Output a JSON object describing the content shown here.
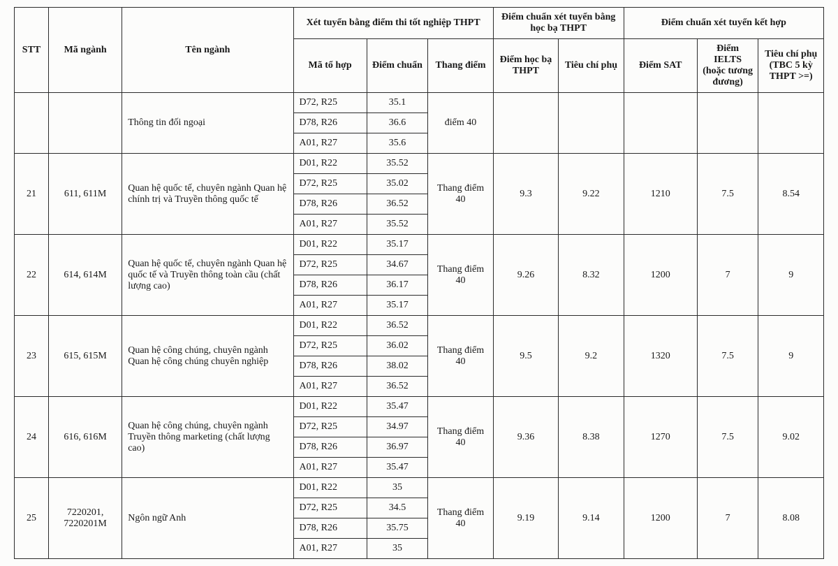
{
  "headers": {
    "stt": "STT",
    "maNganh": "Mã ngành",
    "tenNganh": "Tên ngành",
    "group1": "Xét tuyển bằng điểm thi tốt nghiệp THPT",
    "group2": "Điểm chuẩn xét tuyển bằng học bạ THPT",
    "group3": "Điểm chuẩn xét tuyển kết hợp",
    "maToHop": "Mã tổ hợp",
    "diemChuan": "Điểm chuẩn",
    "thangDiem": "Thang điểm",
    "diemHocBa": "Điểm học bạ THPT",
    "tieuChiPhu": "Tiêu chí phụ",
    "diemSAT": "Điểm SAT",
    "diemIELTS": "Điểm IELTS (hoặc tương đương)",
    "tieuChiPhu2": "Tiêu chí phụ (TBC 5 kỳ THPT >=)"
  },
  "stub": {
    "tenNganh": "Thông tin đối ngoại",
    "thangDiem": "điểm 40",
    "subs": [
      {
        "th": "D72, R25",
        "dc": "35.1"
      },
      {
        "th": "D78, R26",
        "dc": "36.6"
      },
      {
        "th": "A01, R27",
        "dc": "35.6"
      }
    ]
  },
  "rows": [
    {
      "stt": "21",
      "code": "611, 611M",
      "name": "Quan hệ quốc tế, chuyên ngành Quan hệ chính trị và Truyền thông quốc tế",
      "subs": [
        {
          "th": "D01, R22",
          "dc": "35.52"
        },
        {
          "th": "D72, R25",
          "dc": "35.02"
        },
        {
          "th": "D78, R26",
          "dc": "36.52"
        },
        {
          "th": "A01, R27",
          "dc": "35.52"
        }
      ],
      "thang": "Thang điểm 40",
      "hb": "9.3",
      "tcp": "9.22",
      "sat": "1210",
      "ielts": "7.5",
      "tcp2": "8.54"
    },
    {
      "stt": "22",
      "code": "614, 614M",
      "name": "Quan hệ quốc tế, chuyên ngành Quan hệ quốc tế và Truyền thông toàn cầu (chất lượng cao)",
      "subs": [
        {
          "th": "D01, R22",
          "dc": "35.17"
        },
        {
          "th": "D72, R25",
          "dc": "34.67"
        },
        {
          "th": "D78, R26",
          "dc": "36.17"
        },
        {
          "th": "A01, R27",
          "dc": "35.17"
        }
      ],
      "thang": "Thang điểm 40",
      "hb": "9.26",
      "tcp": "8.32",
      "sat": "1200",
      "ielts": "7",
      "tcp2": "9"
    },
    {
      "stt": "23",
      "code": "615, 615M",
      "name": "Quan hệ công chúng, chuyên ngành Quan hệ công chúng chuyên nghiệp",
      "subs": [
        {
          "th": "D01, R22",
          "dc": "36.52"
        },
        {
          "th": "D72, R25",
          "dc": "36.02"
        },
        {
          "th": "D78, R26",
          "dc": "38.02"
        },
        {
          "th": "A01, R27",
          "dc": "36.52"
        }
      ],
      "thang": "Thang điểm 40",
      "hb": "9.5",
      "tcp": "9.2",
      "sat": "1320",
      "ielts": "7.5",
      "tcp2": "9"
    },
    {
      "stt": "24",
      "code": "616, 616M",
      "name": "Quan hệ công chúng, chuyên ngành Truyền thông marketing (chất lượng cao)",
      "subs": [
        {
          "th": "D01, R22",
          "dc": "35.47"
        },
        {
          "th": "D72, R25",
          "dc": "34.97"
        },
        {
          "th": "D78, R26",
          "dc": "36.97"
        },
        {
          "th": "A01, R27",
          "dc": "35.47"
        }
      ],
      "thang": "Thang điểm 40",
      "hb": "9.36",
      "tcp": "8.38",
      "sat": "1270",
      "ielts": "7.5",
      "tcp2": "9.02"
    },
    {
      "stt": "25",
      "code": "7220201, 7220201M",
      "name": "Ngôn ngữ Anh",
      "subs": [
        {
          "th": "D01, R22",
          "dc": "35"
        },
        {
          "th": "D72, R25",
          "dc": "34.5"
        },
        {
          "th": "D78, R26",
          "dc": "35.75"
        },
        {
          "th": "A01, R27",
          "dc": "35"
        }
      ],
      "thang": "Thang điểm 40",
      "hb": "9.19",
      "tcp": "9.14",
      "sat": "1200",
      "ielts": "7",
      "tcp2": "8.08"
    }
  ]
}
